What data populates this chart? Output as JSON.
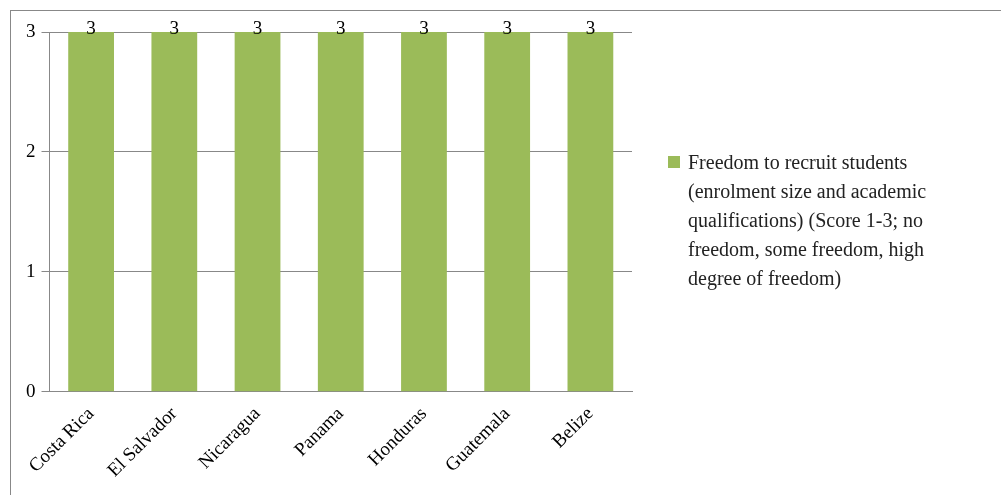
{
  "chart_data": {
    "type": "bar",
    "categories": [
      "Costa Rica",
      "El Salvador",
      "Nicaragua",
      "Panama",
      "Honduras",
      "Guatemala",
      "Belize"
    ],
    "series": [
      {
        "name": "Freedom to recruit students (enrolment size and academic qualifications) (Score 1-3; no freedom, some freedom, high degree of freedom)",
        "color": "#9bbb59",
        "values": [
          3,
          3,
          3,
          3,
          3,
          3,
          3
        ]
      }
    ],
    "ylim": [
      0,
      3
    ],
    "yticks": [
      0,
      1,
      2,
      3
    ],
    "grid": "y",
    "legend": "right",
    "data_labels": true
  }
}
